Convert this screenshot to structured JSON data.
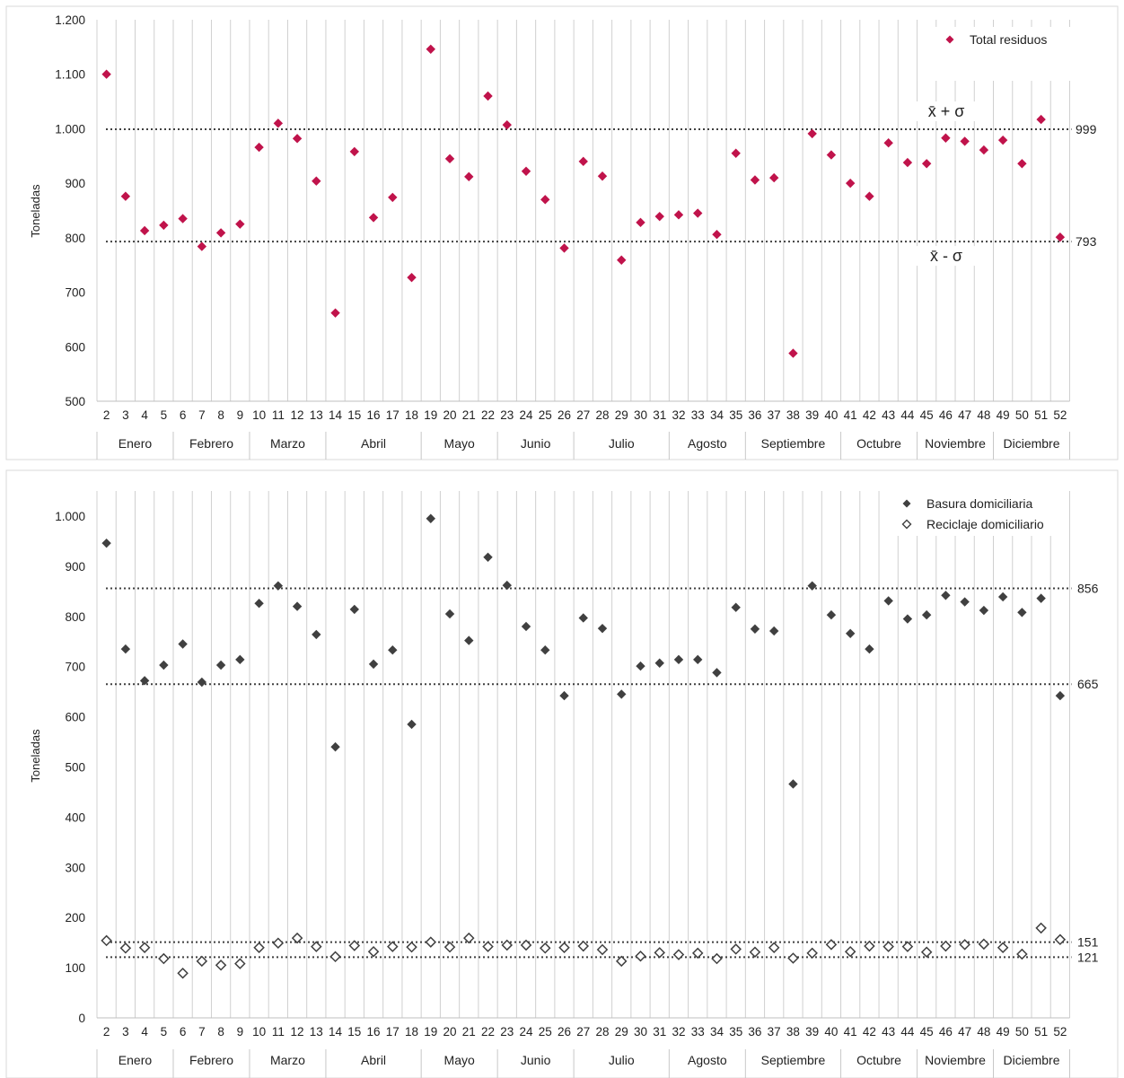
{
  "colors": {
    "total_marker": "#C0134B",
    "basura_marker": "#404040",
    "reciclaje_marker": "#404040",
    "gridline": "#d0d0d0",
    "refline": "#404040"
  },
  "chart_data": [
    {
      "type": "scatter",
      "marker": "diamond",
      "ylabel": "Toneladas",
      "ylim": [
        500,
        1200
      ],
      "yticks": [
        500,
        600,
        700,
        800,
        900,
        1000,
        1100,
        1200
      ],
      "ytick_labels": [
        "500",
        "600",
        "700",
        "800",
        "900",
        "1.000",
        "1.100",
        "1.200"
      ],
      "grid": "vertical",
      "legend_position": "top-right",
      "x": [
        2,
        3,
        4,
        5,
        6,
        7,
        8,
        9,
        10,
        11,
        12,
        13,
        14,
        15,
        16,
        17,
        18,
        19,
        20,
        21,
        22,
        23,
        24,
        25,
        26,
        27,
        28,
        29,
        30,
        31,
        32,
        33,
        34,
        35,
        36,
        37,
        38,
        39,
        40,
        41,
        42,
        43,
        44,
        45,
        46,
        47,
        48,
        49,
        50,
        51,
        52
      ],
      "x_labels": [
        "2",
        "3",
        "4",
        "5",
        "6",
        "7",
        "8",
        "9",
        "10",
        "11",
        "12",
        "13",
        "14",
        "15",
        "16",
        "17",
        "18",
        "19",
        "20",
        "21",
        "22",
        "23",
        "24",
        "25",
        "26",
        "27",
        "28",
        "29",
        "30",
        "31",
        "32",
        "33",
        "34",
        "35",
        "36",
        "37",
        "38",
        "39",
        "40",
        "41",
        "42",
        "43",
        "44",
        "45",
        "46",
        "47",
        "48",
        "49",
        "50",
        "51",
        "52"
      ],
      "months": [
        {
          "label": "Enero",
          "from": 2,
          "to": 5
        },
        {
          "label": "Febrero",
          "from": 6,
          "to": 9
        },
        {
          "label": "Marzo",
          "from": 10,
          "to": 13
        },
        {
          "label": "Abril",
          "from": 14,
          "to": 18
        },
        {
          "label": "Mayo",
          "from": 19,
          "to": 22
        },
        {
          "label": "Junio",
          "from": 23,
          "to": 26
        },
        {
          "label": "Julio",
          "from": 27,
          "to": 31
        },
        {
          "label": "Agosto",
          "from": 32,
          "to": 35
        },
        {
          "label": "Septiembre",
          "from": 36,
          "to": 40
        },
        {
          "label": "Octubre",
          "from": 41,
          "to": 44
        },
        {
          "label": "Noviembre",
          "from": 45,
          "to": 48
        },
        {
          "label": "Diciembre",
          "from": 49,
          "to": 52
        }
      ],
      "series": [
        {
          "name": "Total residuos",
          "filled": true,
          "values": [
            1100,
            876,
            813,
            823,
            835,
            784,
            809,
            825,
            966,
            1010,
            982,
            904,
            662,
            958,
            837,
            874,
            727,
            1146,
            945,
            912,
            1060,
            1007,
            922,
            870,
            781,
            940,
            913,
            759,
            828,
            839,
            842,
            845,
            806,
            955,
            906,
            910,
            588,
            991,
            952,
            900,
            876,
            974,
            938,
            936,
            983,
            977,
            961,
            979,
            936,
            1017,
            801
          ]
        }
      ],
      "reference_lines": [
        {
          "value": 999,
          "label": "999",
          "annotation": "x̄ + σ"
        },
        {
          "value": 793,
          "label": "793",
          "annotation": "x̄ - σ"
        }
      ]
    },
    {
      "type": "scatter",
      "marker": "diamond",
      "ylabel": "Toneladas",
      "ylim": [
        0,
        1050
      ],
      "yticks": [
        0,
        100,
        200,
        300,
        400,
        500,
        600,
        700,
        800,
        900,
        1000
      ],
      "ytick_labels": [
        "0",
        "100",
        "200",
        "300",
        "400",
        "500",
        "600",
        "700",
        "800",
        "900",
        "1.000"
      ],
      "grid": "vertical",
      "legend_position": "top-right",
      "x": [
        2,
        3,
        4,
        5,
        6,
        7,
        8,
        9,
        10,
        11,
        12,
        13,
        14,
        15,
        16,
        17,
        18,
        19,
        20,
        21,
        22,
        23,
        24,
        25,
        26,
        27,
        28,
        29,
        30,
        31,
        32,
        33,
        34,
        35,
        36,
        37,
        38,
        39,
        40,
        41,
        42,
        43,
        44,
        45,
        46,
        47,
        48,
        49,
        50,
        51,
        52
      ],
      "x_labels": [
        "2",
        "3",
        "4",
        "5",
        "6",
        "7",
        "8",
        "9",
        "10",
        "11",
        "12",
        "13",
        "14",
        "15",
        "16",
        "17",
        "18",
        "19",
        "20",
        "21",
        "22",
        "23",
        "24",
        "25",
        "26",
        "27",
        "28",
        "29",
        "30",
        "31",
        "32",
        "33",
        "34",
        "35",
        "36",
        "37",
        "38",
        "39",
        "40",
        "41",
        "42",
        "43",
        "44",
        "45",
        "46",
        "47",
        "48",
        "49",
        "50",
        "51",
        "52"
      ],
      "months": [
        {
          "label": "Enero",
          "from": 2,
          "to": 5
        },
        {
          "label": "Febrero",
          "from": 6,
          "to": 9
        },
        {
          "label": "Marzo",
          "from": 10,
          "to": 13
        },
        {
          "label": "Abril",
          "from": 14,
          "to": 18
        },
        {
          "label": "Mayo",
          "from": 19,
          "to": 22
        },
        {
          "label": "Junio",
          "from": 23,
          "to": 26
        },
        {
          "label": "Julio",
          "from": 27,
          "to": 31
        },
        {
          "label": "Agosto",
          "from": 32,
          "to": 35
        },
        {
          "label": "Septiembre",
          "from": 36,
          "to": 40
        },
        {
          "label": "Octubre",
          "from": 41,
          "to": 44
        },
        {
          "label": "Noviembre",
          "from": 45,
          "to": 48
        },
        {
          "label": "Diciembre",
          "from": 49,
          "to": 52
        }
      ],
      "series": [
        {
          "name": "Basura domiciliaria",
          "filled": true,
          "values": [
            946,
            735,
            672,
            703,
            745,
            669,
            703,
            714,
            826,
            861,
            820,
            764,
            540,
            814,
            705,
            733,
            585,
            995,
            805,
            752,
            918,
            862,
            780,
            733,
            642,
            797,
            776,
            645,
            701,
            707,
            714,
            714,
            688,
            818,
            775,
            771,
            466,
            861,
            803,
            766,
            735,
            831,
            795,
            803,
            842,
            829,
            812,
            839,
            808,
            836,
            642
          ]
        },
        {
          "name": "Reciclaje domiciliario",
          "filled": false,
          "values": [
            154,
            139,
            140,
            118,
            89,
            113,
            105,
            108,
            140,
            149,
            159,
            142,
            122,
            144,
            132,
            142,
            141,
            151,
            141,
            159,
            142,
            145,
            145,
            139,
            140,
            143,
            136,
            113,
            123,
            130,
            126,
            129,
            118,
            137,
            131,
            140,
            119,
            129,
            146,
            132,
            143,
            142,
            142,
            131,
            143,
            146,
            147,
            140,
            127,
            179,
            156
          ]
        }
      ],
      "reference_lines": [
        {
          "value": 856,
          "label": "856"
        },
        {
          "value": 665,
          "label": "665"
        },
        {
          "value": 151,
          "label": "151"
        },
        {
          "value": 121,
          "label": "121"
        }
      ]
    }
  ]
}
